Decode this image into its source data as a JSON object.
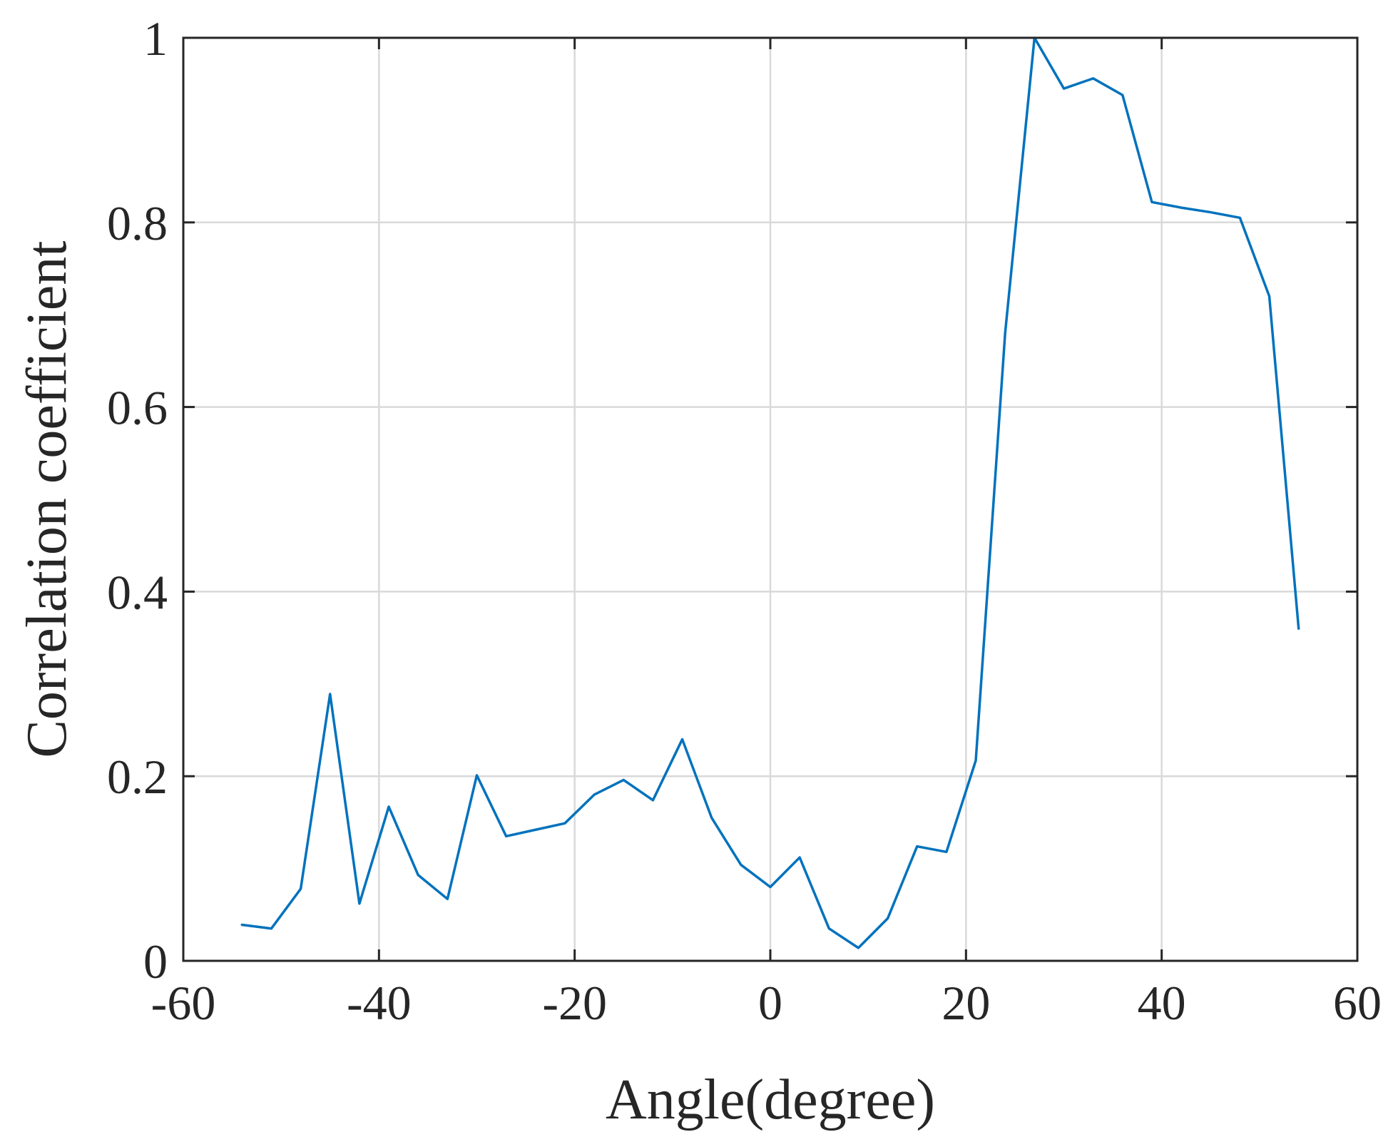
{
  "chart_data": {
    "type": "line",
    "title": "",
    "xlabel": "Angle(degree)",
    "ylabel": "Correlation coefficient",
    "xlim": [
      -60,
      60
    ],
    "ylim": [
      0,
      1
    ],
    "xticks": [
      -60,
      -40,
      -20,
      0,
      20,
      40,
      60
    ],
    "xtick_labels": [
      "-60",
      "-40",
      "-20",
      "0",
      "20",
      "40",
      "60"
    ],
    "yticks": [
      0,
      0.2,
      0.4,
      0.6,
      0.8,
      1
    ],
    "ytick_labels": [
      "0",
      "0.2",
      "0.4",
      "0.6",
      "0.8",
      "1"
    ],
    "grid": true,
    "series": [
      {
        "color": "#0072bd",
        "x": [
          -54,
          -51,
          -48,
          -45,
          -42,
          -39,
          -36,
          -33,
          -30,
          -27,
          -24,
          -21,
          -18,
          -15,
          -12,
          -9,
          -6,
          -3,
          0,
          3,
          6,
          9,
          12,
          15,
          18,
          21,
          24,
          27,
          30,
          33,
          36,
          39,
          42,
          45,
          48,
          51,
          54
        ],
        "y": [
          0.039,
          0.035,
          0.078,
          0.289,
          0.062,
          0.167,
          0.093,
          0.067,
          0.201,
          0.135,
          0.142,
          0.149,
          0.18,
          0.196,
          0.174,
          0.24,
          0.155,
          0.104,
          0.08,
          0.112,
          0.035,
          0.014,
          0.046,
          0.124,
          0.118,
          0.217,
          0.68,
          1.0,
          0.945,
          0.956,
          0.938,
          0.822,
          0.816,
          0.811,
          0.805,
          0.72,
          0.36
        ]
      }
    ]
  }
}
